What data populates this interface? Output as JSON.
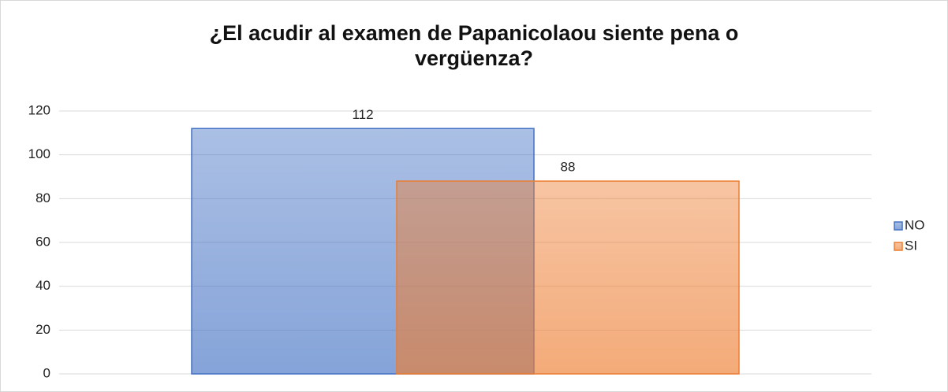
{
  "chart_data": {
    "type": "bar",
    "title": "¿El acudir al examen de Papanicolaou siente pena o vergüenza?",
    "categories": [
      null
    ],
    "series": [
      {
        "name": "NO",
        "color": "#4472c4",
        "values": [
          112
        ]
      },
      {
        "name": "SI",
        "color": "#ed7d31",
        "values": [
          88
        ]
      }
    ],
    "ylim": [
      0,
      120
    ],
    "yticks": [
      0,
      20,
      40,
      60,
      80,
      100,
      120
    ],
    "grid": true,
    "legend": "right"
  }
}
